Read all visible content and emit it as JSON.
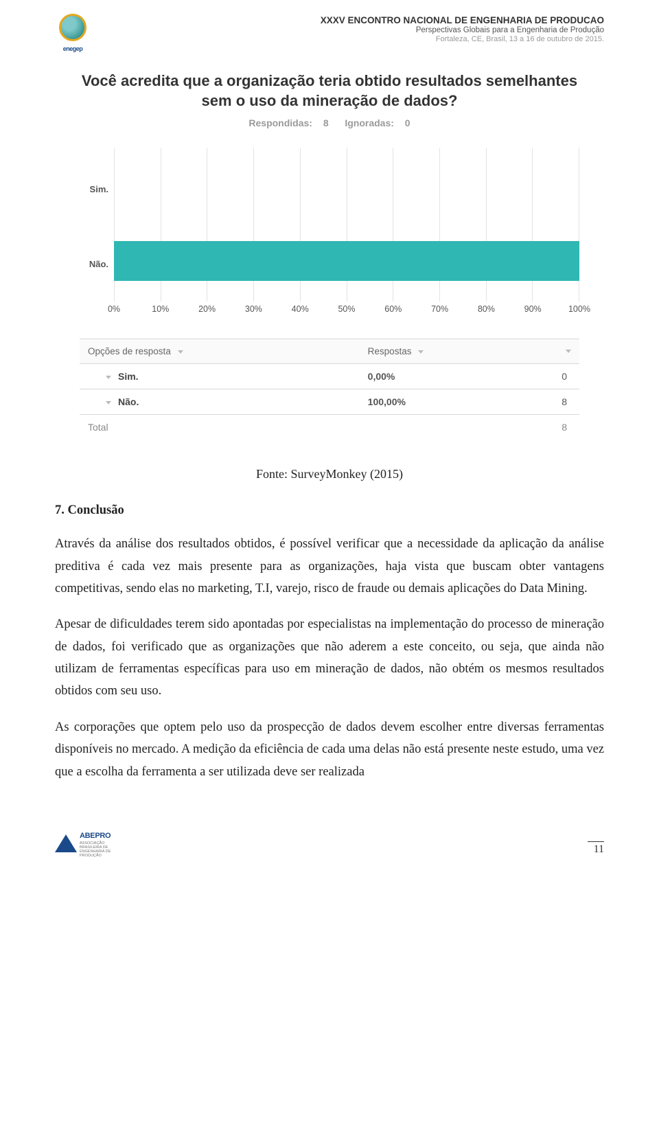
{
  "header": {
    "logo_label": "enegep",
    "line1": "XXXV ENCONTRO NACIONAL DE ENGENHARIA DE PRODUCAO",
    "line2": "Perspectivas Globais para a Engenharia de Produção",
    "line3": "Fortaleza, CE, Brasil, 13 a 16 de outubro de 2015."
  },
  "survey": {
    "title": "Você acredita que a organização teria obtido resultados semelhantes sem o uso da mineração de dados?",
    "answered_label": "Respondidas:",
    "answered_value": "8",
    "skipped_label": "Ignoradas:",
    "skipped_value": "0",
    "chart": {
      "type": "bar-horizontal",
      "categories": [
        "Sim.",
        "Não."
      ],
      "values": [
        0,
        100
      ],
      "xlim": [
        0,
        100
      ],
      "xtick_step": 10,
      "xticks": [
        "0%",
        "10%",
        "20%",
        "30%",
        "40%",
        "50%",
        "60%",
        "70%",
        "80%",
        "90%",
        "100%"
      ],
      "bar_color": "#2fb7b3",
      "grid_color": "#e3e3e3",
      "background_color": "#ffffff",
      "label_fontsize": 13
    },
    "table": {
      "col_options": "Opções de resposta",
      "col_responses": "Respostas",
      "rows": [
        {
          "label": "Sim.",
          "pct": "0,00%",
          "count": "0"
        },
        {
          "label": "Não.",
          "pct": "100,00%",
          "count": "8"
        }
      ],
      "total_label": "Total",
      "total_count": "8"
    }
  },
  "source": "Fonte: SurveyMonkey (2015)",
  "section_title": "7. Conclusão",
  "paragraphs": {
    "p1": "Através da análise dos resultados obtidos, é possível verificar que a necessidade da aplicação da análise preditiva é cada vez mais presente para as organizações, haja vista que buscam obter vantagens competitivas, sendo elas no marketing, T.I, varejo, risco de fraude ou demais aplicações do Data Mining.",
    "p2": "Apesar de dificuldades terem sido apontadas por especialistas na implementação do processo de mineração de dados, foi verificado que as organizações que não aderem a este conceito, ou seja, que ainda não utilizam de ferramentas específicas para uso em mineração de dados, não obtém os mesmos resultados obtidos com seu uso.",
    "p3": "As corporações que optem pelo uso da prospecção de dados devem escolher entre diversas ferramentas disponíveis no mercado. A medição da eficiência de cada uma delas não está presente neste estudo, uma vez que a escolha da ferramenta a ser utilizada deve ser realizada"
  },
  "footer": {
    "logo_text": "ABEPRO",
    "logo_sub": "ASSOCIAÇÃO BRASILEIRA DE ENGENHARIA DE PRODUÇÃO",
    "page": "11"
  },
  "colors": {
    "accent": "#2fb7b3",
    "text": "#333333",
    "muted": "#9a9a9a",
    "grid": "#e3e3e3",
    "border": "#d8d8d8"
  }
}
